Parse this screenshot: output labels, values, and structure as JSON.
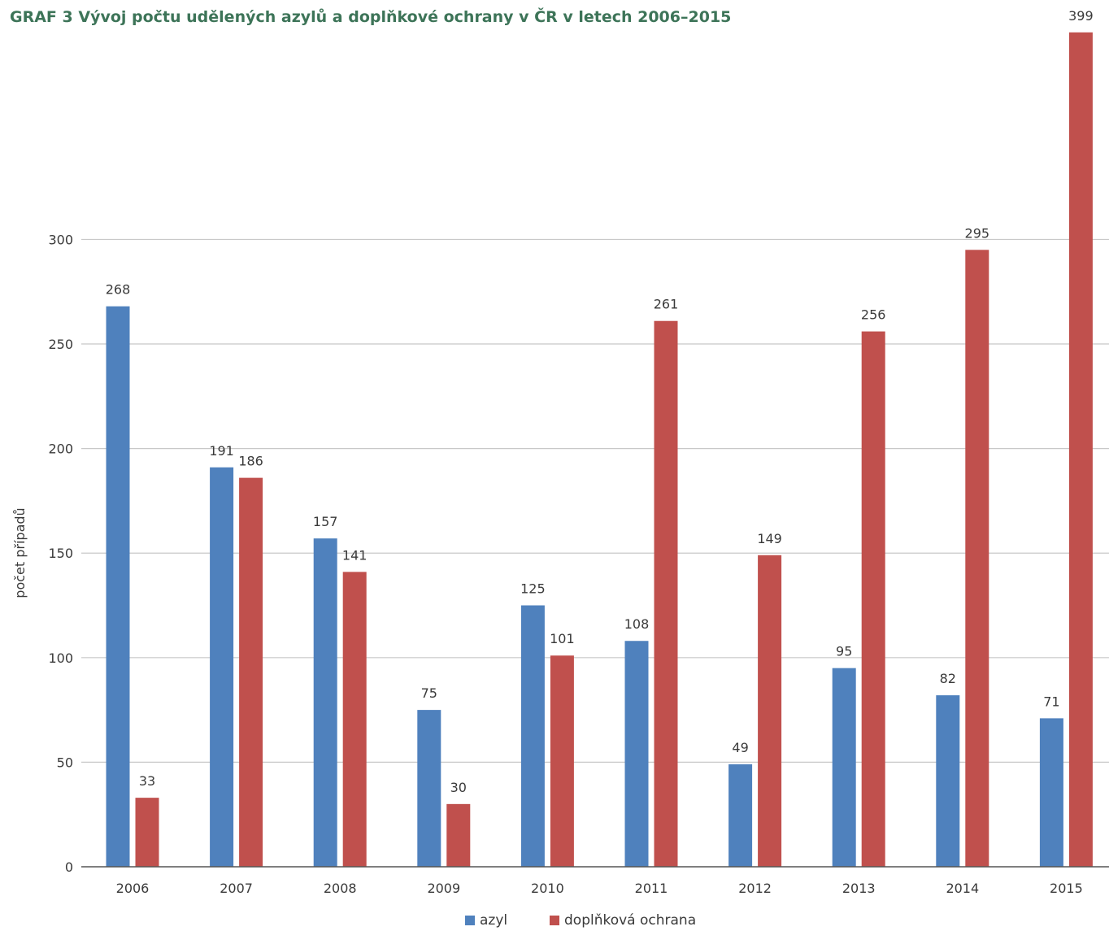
{
  "chart_data": {
    "type": "bar",
    "title": "GRAF 3  Vývoj počtu udělených azylů a doplňkové ochrany v ČR v letech 2006–2015",
    "xlabel": "",
    "ylabel": "počet případů",
    "categories": [
      "2006",
      "2007",
      "2008",
      "2009",
      "2010",
      "2011",
      "2012",
      "2013",
      "2014",
      "2015"
    ],
    "series": [
      {
        "name": "azyl",
        "color": "#4f81bd",
        "values": [
          268,
          191,
          157,
          75,
          125,
          108,
          49,
          95,
          82,
          71
        ]
      },
      {
        "name": "doplňková ochrana",
        "color": "#c0504d",
        "values": [
          33,
          186,
          141,
          30,
          101,
          261,
          149,
          256,
          295,
          399
        ]
      }
    ],
    "yticks": [
      0,
      50,
      100,
      150,
      200,
      250,
      300
    ],
    "ylim": [
      0,
      400
    ],
    "grid": true,
    "legend_position": "bottom-center",
    "data_labels": true
  }
}
